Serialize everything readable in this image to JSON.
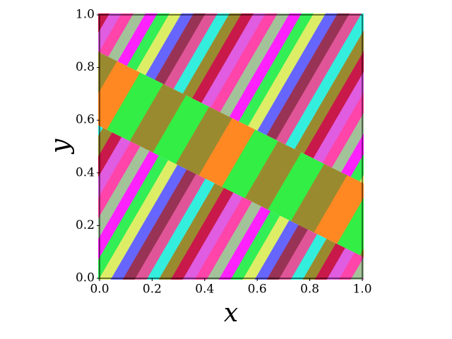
{
  "chart_data": {
    "type": "image",
    "xlabel": "x",
    "ylabel": "y",
    "xlim": [
      0,
      1
    ],
    "ylim": [
      0,
      1
    ],
    "xticks": [
      {
        "value": 0,
        "label": "0.0"
      },
      0.2,
      0.4,
      0.6,
      0.8,
      {
        "value": 1,
        "label": "1.0"
      }
    ],
    "yticks": [
      {
        "value": 0,
        "label": "0.0"
      },
      0.2,
      0.4,
      0.6,
      0.8,
      {
        "value": 1,
        "label": "1.0"
      }
    ],
    "colors": [
      "#9a8a2f",
      "#c8194a",
      "#e05ce0",
      "#ff44aa",
      "#a3c29a",
      "#ff22ff",
      "#33ee55",
      "#ddee66",
      "#6666ff",
      "#993355",
      "#e05598",
      "#33eedd"
    ],
    "center_colors": [
      "#33ee44",
      "#9a8a2f",
      "#ff8822",
      "#33ee44",
      "#9a8a2f"
    ]
  }
}
